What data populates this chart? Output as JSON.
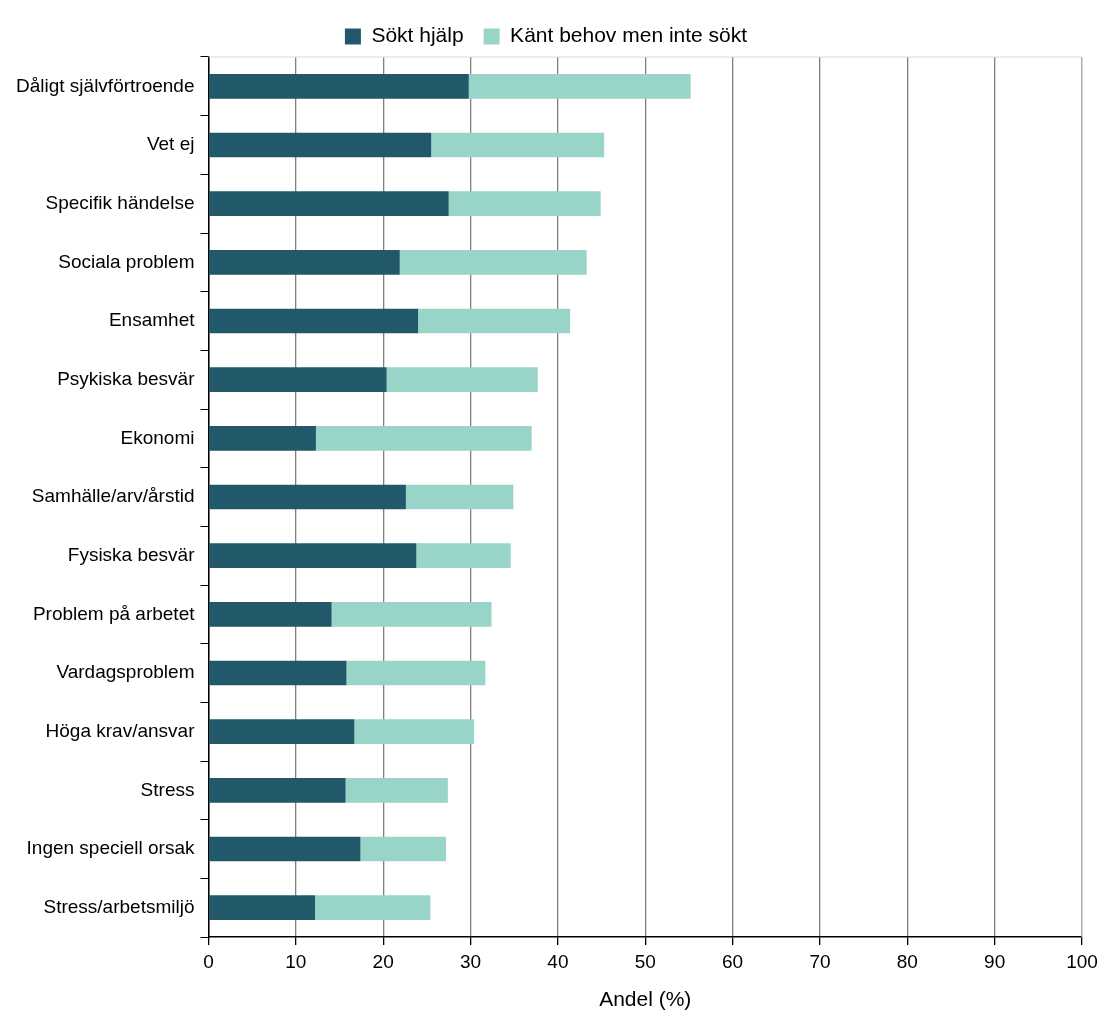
{
  "chart_data": {
    "type": "bar",
    "orientation": "horizontal",
    "stacked": true,
    "categories": [
      "Dåligt självförtroende",
      "Vet ej",
      "Specifik händelse",
      "Sociala problem",
      "Ensamhet",
      "Psykiska besvär",
      "Ekonomi",
      "Samhälle/arv/årstid",
      "Fysiska besvär",
      "Problem på arbetet",
      "Vardagsproblem",
      "Höga krav/ansvar",
      "Stress",
      "Ingen speciell orsak",
      "Stress/arbetsmiljö"
    ],
    "series": [
      {
        "name": "Sökt hjälp",
        "color": "#22596a",
        "values": [
          29.8,
          25.5,
          27.5,
          21.9,
          24.0,
          20.4,
          12.3,
          22.6,
          23.8,
          14.1,
          15.8,
          16.7,
          15.7,
          17.4,
          12.2
        ]
      },
      {
        "name": "Känt behov men inte sökt",
        "color": "#98d5c8",
        "values": [
          25.4,
          19.8,
          17.4,
          21.4,
          17.4,
          17.3,
          24.7,
          12.3,
          10.8,
          18.3,
          15.9,
          13.7,
          11.7,
          9.8,
          13.2
        ]
      }
    ],
    "xlabel": "Andel (%)",
    "xlim": [
      0,
      100
    ],
    "xticks": [
      0,
      10,
      20,
      30,
      40,
      50,
      60,
      70,
      80,
      90,
      100
    ],
    "grid": "x",
    "legend": "top"
  }
}
